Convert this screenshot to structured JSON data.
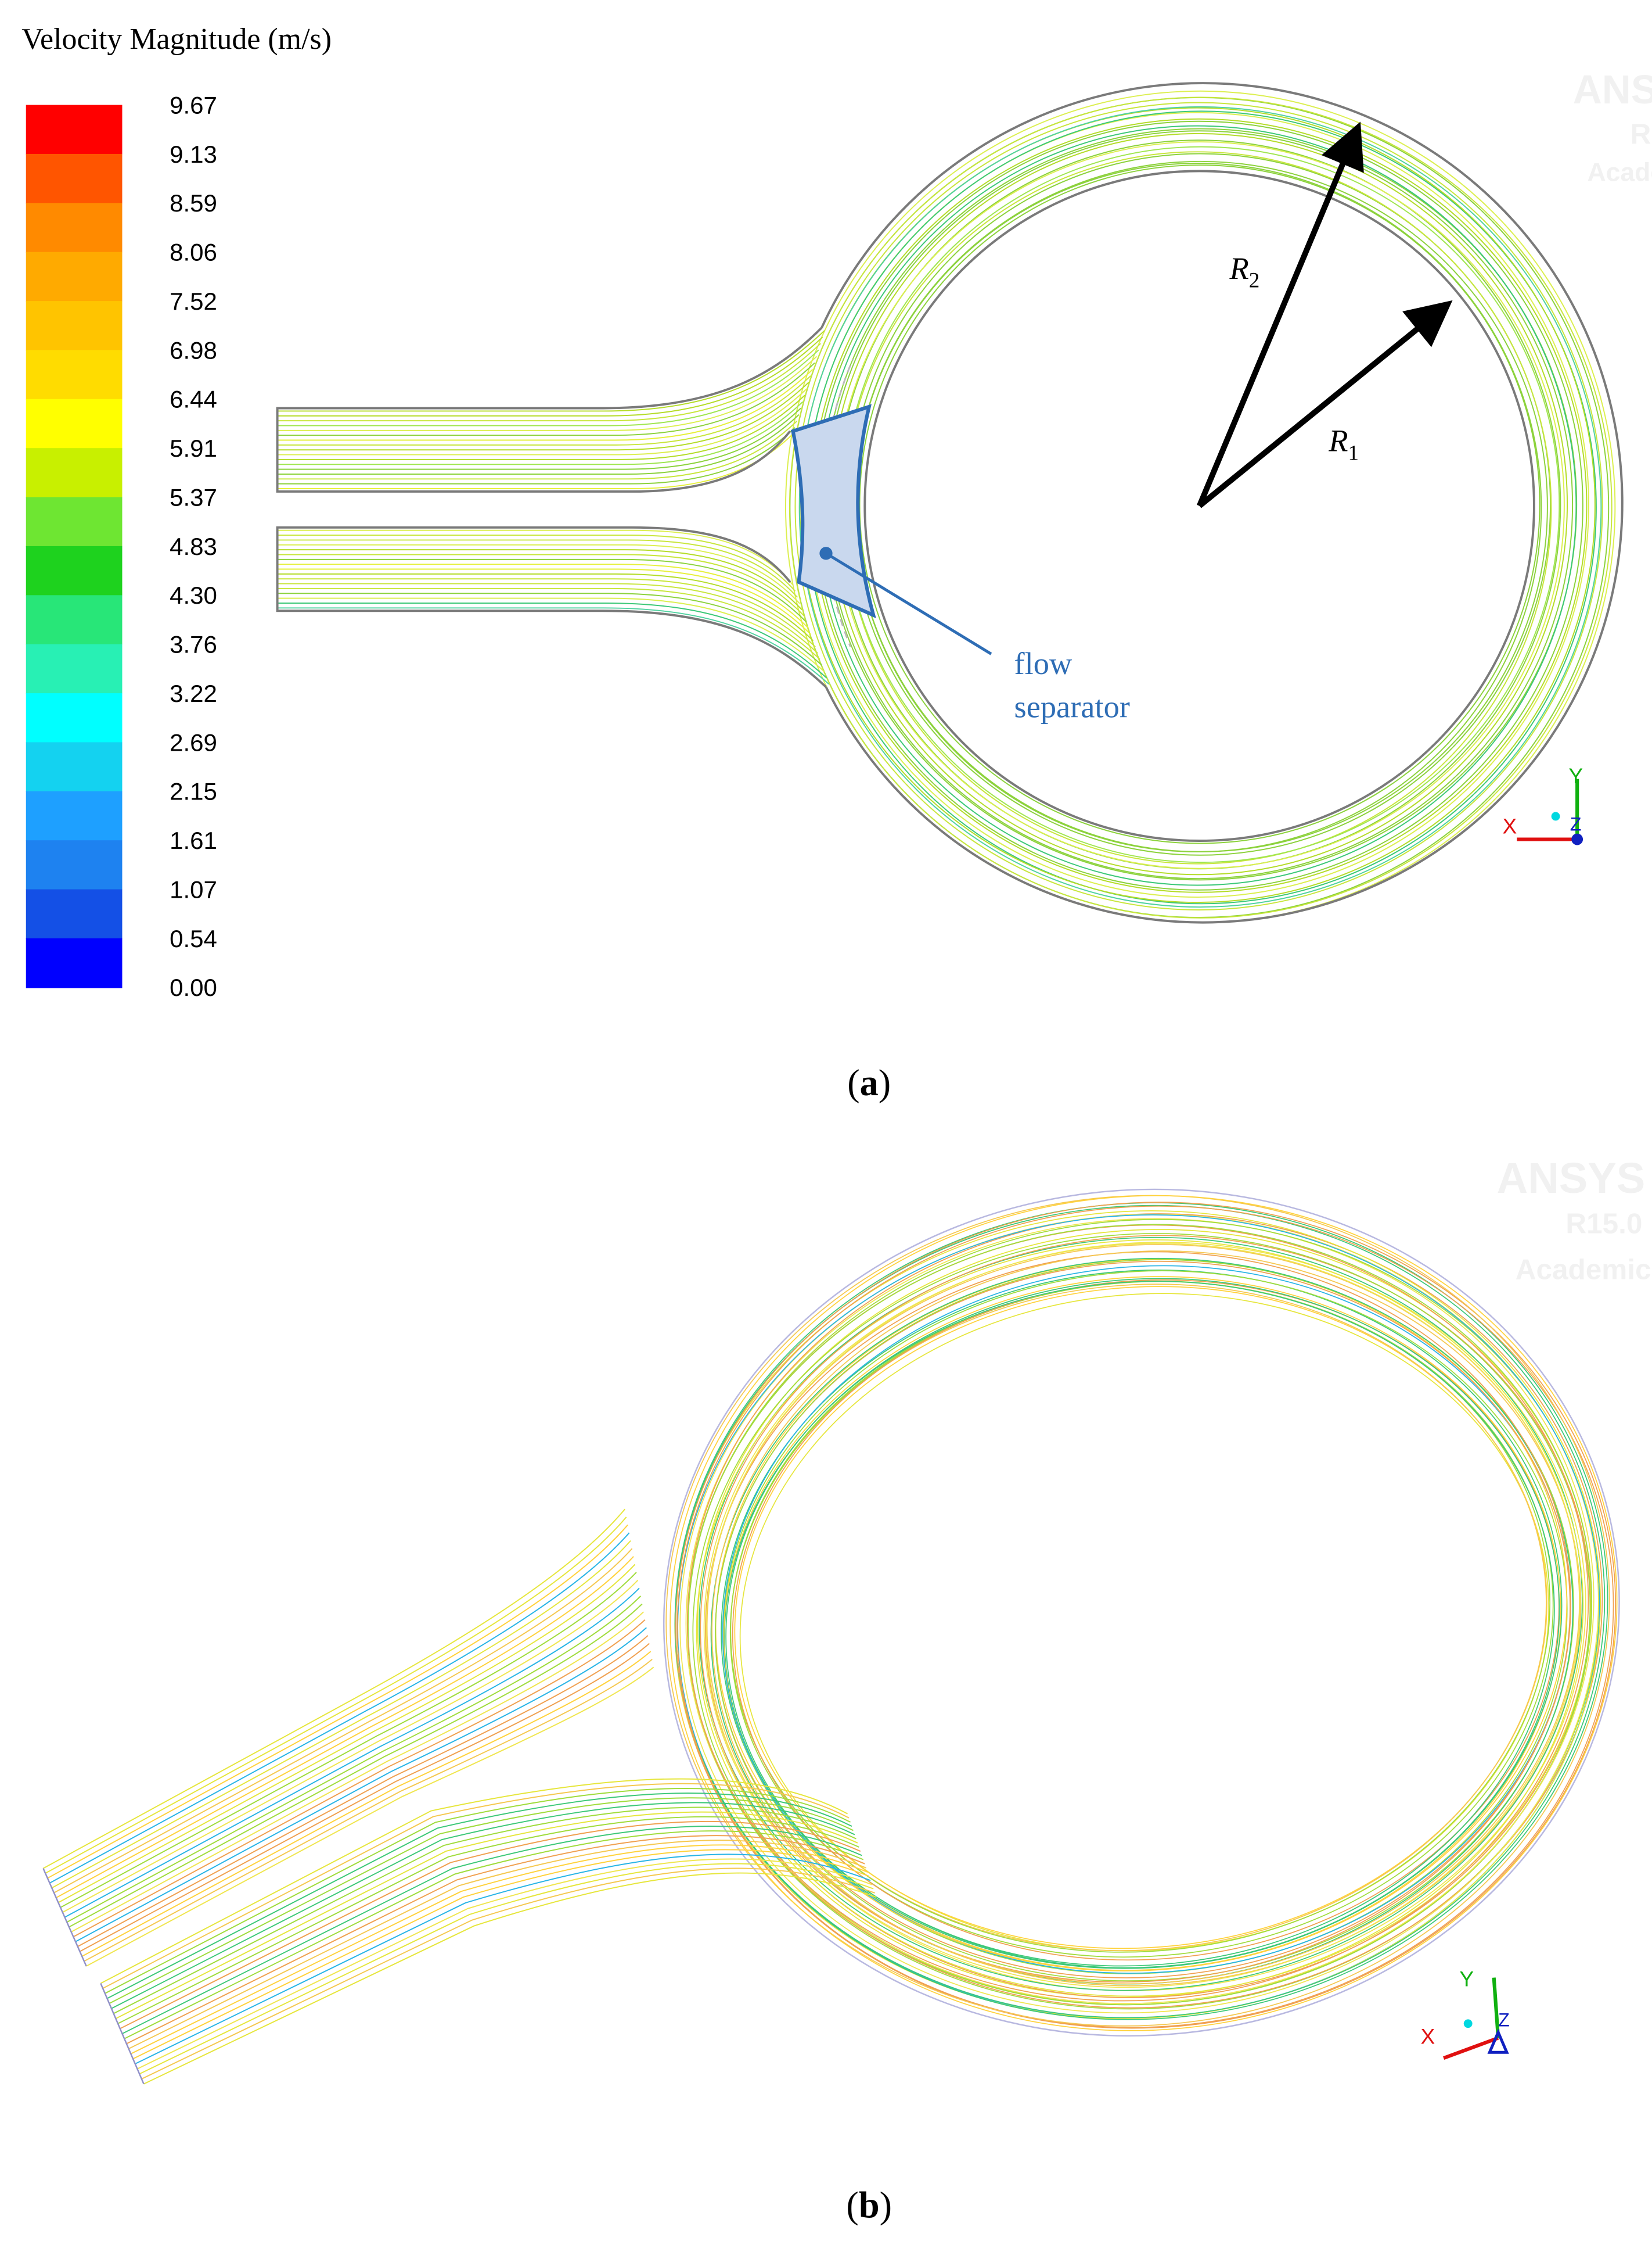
{
  "legend": {
    "title": "Velocity Magnitude (m/s)",
    "labels": [
      "9.67",
      "9.13",
      "8.59",
      "8.06",
      "7.52",
      "6.98",
      "6.44",
      "5.91",
      "5.37",
      "4.83",
      "4.30",
      "3.76",
      "3.22",
      "2.69",
      "2.15",
      "1.61",
      "1.07",
      "0.54",
      "0.00"
    ],
    "colors": [
      "#ff0000",
      "#ff5500",
      "#ff8a00",
      "#ffaa00",
      "#ffc400",
      "#ffdc00",
      "#ffff00",
      "#c8f000",
      "#6ee632",
      "#1ed21e",
      "#28e678",
      "#28f0b4",
      "#00ffff",
      "#14d2f0",
      "#1ea0ff",
      "#1e82f0",
      "#1450e6",
      "#0000ff"
    ]
  },
  "radius_outer": {
    "symbol": "R",
    "subscript": "2"
  },
  "radius_inner": {
    "symbol": "R",
    "subscript": "1"
  },
  "flow_separator": [
    "flow",
    "separator"
  ],
  "axes": {
    "x": "X",
    "y": "Y",
    "z": "Z"
  },
  "watermark": {
    "name": "ANSYS",
    "version": "R15.0",
    "license": "Academic"
  },
  "captions": [
    {
      "prefix": "(",
      "letter": "a",
      "suffix": ")"
    },
    {
      "prefix": "(",
      "letter": "b",
      "suffix": ")"
    }
  ]
}
